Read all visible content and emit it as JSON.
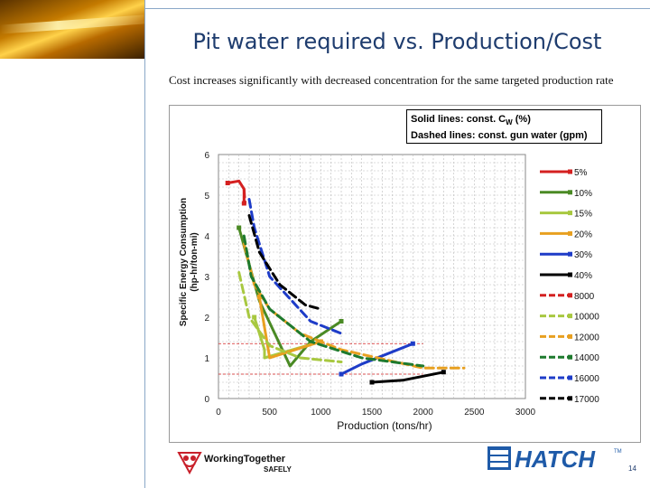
{
  "slide": {
    "title": "Pit water required vs. Production/Cost",
    "subtitle": "Cost increases significantly with decreased concentration for the same targeted production rate",
    "page_number": "14"
  },
  "note": {
    "line1_prefix": "Solid lines: const. C",
    "line1_sub": "W",
    "line1_suffix": " (%)",
    "line2": "Dashed lines: const. gun water (gpm)"
  },
  "logos": {
    "working_together_1": "WorkingTogether",
    "working_together_2": "SAFELY",
    "hatch": "HATCH",
    "tm": "TM"
  },
  "chart_data": {
    "type": "line",
    "xlabel": "Production (tons/hr)",
    "ylabel_line1": "Specific Energy Consumption",
    "ylabel_line2": "(hp-hr/ton-mi)",
    "xlim": [
      0,
      3000
    ],
    "ylim": [
      0,
      6
    ],
    "xticks": [
      "0",
      "500",
      "1000",
      "1500",
      "2000",
      "2500",
      "3000"
    ],
    "yticks": [
      "0",
      "1",
      "2",
      "3",
      "4",
      "5",
      "6"
    ],
    "grid": true,
    "legend_position": "right",
    "series": [
      {
        "name": "5%",
        "color": "#d42020",
        "dash": false,
        "points": [
          [
            90,
            5.3
          ],
          [
            200,
            5.35
          ],
          [
            250,
            5.15
          ],
          [
            250,
            4.8
          ]
        ]
      },
      {
        "name": "10%",
        "color": "#4a8a24",
        "dash": false,
        "points": [
          [
            200,
            4.2
          ],
          [
            400,
            2.4
          ],
          [
            700,
            0.8
          ],
          [
            900,
            1.4
          ],
          [
            1200,
            1.9
          ]
        ]
      },
      {
        "name": "15%",
        "color": "#a8c840",
        "dash": false,
        "points": [
          [
            350,
            2.0
          ],
          [
            450,
            1.2
          ],
          [
            450,
            1.0
          ],
          [
            1000,
            1.4
          ]
        ]
      },
      {
        "name": "20%",
        "color": "#e8a020",
        "dash": false,
        "points": [
          [
            400,
            2.5
          ],
          [
            500,
            1.0
          ],
          [
            1000,
            1.4
          ]
        ]
      },
      {
        "name": "30%",
        "color": "#1e3cc8",
        "dash": false,
        "points": [
          [
            1200,
            0.6
          ],
          [
            1400,
            0.85
          ],
          [
            1900,
            1.35
          ]
        ]
      },
      {
        "name": "40%",
        "color": "#000000",
        "dash": false,
        "points": [
          [
            1500,
            0.4
          ],
          [
            1800,
            0.45
          ],
          [
            2000,
            0.55
          ],
          [
            2200,
            0.65
          ]
        ]
      },
      {
        "name": "8000",
        "color": "#d42020",
        "dash": true,
        "points": [
          [
            250,
            5.15
          ],
          [
            260,
            4.8
          ]
        ]
      },
      {
        "name": "10000",
        "color": "#a8c840",
        "dash": true,
        "points": [
          [
            200,
            3.1
          ],
          [
            300,
            2.0
          ],
          [
            500,
            1.3
          ],
          [
            800,
            1.0
          ],
          [
            1200,
            0.9
          ]
        ]
      },
      {
        "name": "12000",
        "color": "#e8a020",
        "dash": true,
        "points": [
          [
            250,
            3.8
          ],
          [
            350,
            2.8
          ],
          [
            500,
            2.2
          ],
          [
            800,
            1.6
          ],
          [
            1200,
            1.2
          ],
          [
            2000,
            0.75
          ],
          [
            2400,
            0.75
          ]
        ]
      },
      {
        "name": "14000",
        "color": "#1e7a2e",
        "dash": true,
        "points": [
          [
            250,
            4.0
          ],
          [
            320,
            3.0
          ],
          [
            500,
            2.2
          ],
          [
            900,
            1.4
          ],
          [
            1400,
            1.0
          ],
          [
            2000,
            0.8
          ]
        ]
      },
      {
        "name": "16000",
        "color": "#1e3cc8",
        "dash": true,
        "points": [
          [
            300,
            4.9
          ],
          [
            350,
            4.2
          ],
          [
            500,
            3.0
          ],
          [
            900,
            1.9
          ],
          [
            1200,
            1.6
          ]
        ]
      },
      {
        "name": "17000",
        "color": "#000000",
        "dash": true,
        "points": [
          [
            300,
            4.5
          ],
          [
            400,
            3.6
          ],
          [
            600,
            2.8
          ],
          [
            850,
            2.3
          ],
          [
            1000,
            2.2
          ]
        ]
      }
    ],
    "reference_lines": [
      {
        "y": 1.35,
        "color": "#d42020"
      },
      {
        "y": 0.6,
        "color": "#d42020"
      }
    ]
  }
}
